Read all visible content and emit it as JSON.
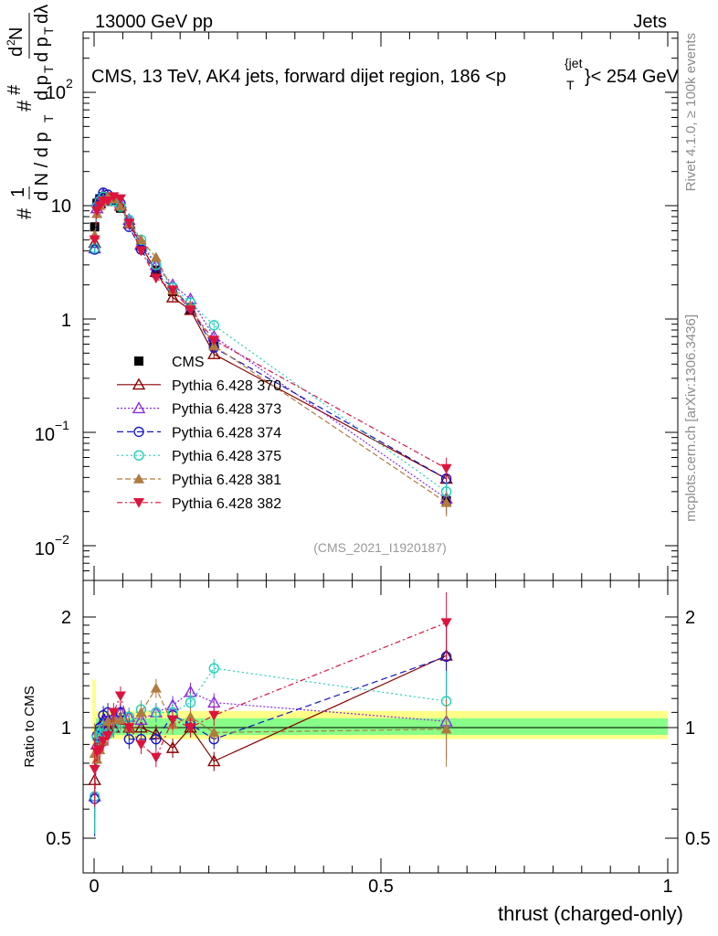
{
  "header": {
    "left": "13000 GeV pp",
    "right": "Jets"
  },
  "side_labels": {
    "rivet": "Rivet 4.1.0, ≥ 100k events",
    "mcplots": "mcplots.cern.ch [arXiv:1306.3436]"
  },
  "colors": {
    "cms": "#000000",
    "p370": "#8b0000",
    "p373": "#8a2be2",
    "p374": "#1515c8",
    "p375": "#20d0b8",
    "p381": "#b07a40",
    "p382": "#dc143c",
    "band_outer": "#ffff88",
    "band_inner": "#88ff88"
  },
  "chart_data": {
    "type": "line",
    "title": "CMS, 13 TeV, AK4 jets, forward dijet region, 186 <p_T^{jet}> < 254 GeV",
    "title_main": "CMS, 13 TeV, AK4 jets, forward dijet region, 186 <p",
    "title_tail": "}< 254 GeV",
    "title_sup": "{jet",
    "title_sub": "T",
    "analysis_id": "(CMS_2021_I1920187)",
    "xlabel": "thrust (charged-only)",
    "ylabel_top": "1/N dN/dp_T dN/dp_T d^2N/dp_T dlambda",
    "ylabel_ratio": "Ratio to CMS",
    "xlim": [
      -0.02,
      1.0
    ],
    "ylim_main": [
      0.005,
      300
    ],
    "ylim_ratio": [
      0.4,
      2.3
    ],
    "x_ticks": [
      "0",
      "0.5",
      "1"
    ],
    "y_ticks_main": [
      "10",
      "1"
    ],
    "y_ticks_main_pow": [
      {
        "base": "10",
        "exp": "2"
      },
      {
        "base": "10",
        "exp": "−1"
      },
      {
        "base": "10",
        "exp": "−2"
      }
    ],
    "y_ticks_ratio": [
      "2",
      "1",
      "0.5"
    ],
    "y_ticks_ratio_right": [
      "2",
      "1",
      "0.5"
    ],
    "x": [
      0.001,
      0.005,
      0.01,
      0.016,
      0.024,
      0.034,
      0.046,
      0.061,
      0.082,
      0.108,
      0.137,
      0.168,
      0.209,
      0.614
    ],
    "series": [
      {
        "name": "CMS",
        "key": "cms",
        "marker": "square",
        "dash": "none",
        "values": [
          6.5,
          10.5,
          11.5,
          12.0,
          11.5,
          11.0,
          9.5,
          7.0,
          4.5,
          2.7,
          1.75,
          1.2,
          0.6,
          0.025
        ],
        "ratio": [
          1,
          1,
          1,
          1,
          1,
          1,
          1,
          1,
          1,
          1,
          1,
          1,
          1,
          1
        ]
      },
      {
        "name": "Pythia 6.428 370",
        "key": "p370",
        "marker": "triangle-open",
        "dash": "none",
        "values": [
          4.7,
          9.5,
          10.5,
          12.5,
          11.5,
          11.0,
          10.0,
          7.0,
          4.5,
          2.6,
          1.55,
          1.2,
          0.49,
          0.039
        ],
        "ratio": [
          0.72,
          0.9,
          0.92,
          1.03,
          1.0,
          1.0,
          1.05,
          1.0,
          1.0,
          0.96,
          0.88,
          1.0,
          0.81,
          1.57
        ]
      },
      {
        "name": "Pythia 6.428 373",
        "key": "p373",
        "marker": "triangle-open",
        "dash": "2,2",
        "values": [
          4.2,
          9.5,
          11.0,
          12.5,
          12.0,
          11.5,
          10.5,
          7.5,
          4.6,
          3.0,
          2.0,
          1.5,
          0.7,
          0.026
        ],
        "ratio": [
          0.65,
          0.9,
          0.95,
          1.05,
          1.05,
          1.05,
          1.1,
          1.07,
          1.05,
          1.1,
          1.15,
          1.25,
          1.17,
          1.04
        ]
      },
      {
        "name": "Pythia 6.428 374",
        "key": "p374",
        "marker": "circle-open",
        "dash": "7,4",
        "values": [
          4.1,
          10.0,
          11.5,
          13.0,
          12.5,
          11.0,
          10.5,
          6.5,
          4.1,
          2.5,
          1.9,
          1.25,
          0.56,
          0.039
        ],
        "ratio": [
          0.64,
          0.95,
          1.0,
          1.08,
          1.1,
          1.0,
          1.1,
          0.93,
          0.93,
          0.93,
          1.08,
          1.02,
          0.93,
          1.56
        ]
      },
      {
        "name": "Pythia 6.428 375",
        "key": "p375",
        "marker": "circle-open",
        "dash": "2,3",
        "values": [
          4.2,
          9.8,
          11.0,
          12.0,
          11.0,
          11.0,
          9.8,
          7.5,
          5.0,
          3.0,
          1.9,
          1.4,
          0.88,
          0.03
        ],
        "ratio": [
          0.65,
          0.94,
          0.96,
          1.0,
          0.96,
          1.0,
          1.03,
          1.07,
          1.12,
          1.1,
          1.1,
          1.17,
          1.45,
          1.18
        ]
      },
      {
        "name": "Pythia 6.428 381",
        "key": "p381",
        "marker": "triangle-filled",
        "dash": "6,3",
        "values": [
          5.5,
          8.5,
          10.0,
          11.0,
          12.0,
          11.5,
          10.0,
          7.0,
          5.0,
          3.5,
          1.8,
          1.3,
          0.58,
          0.024
        ],
        "ratio": [
          0.85,
          0.82,
          0.87,
          0.92,
          1.04,
          1.05,
          1.05,
          1.0,
          1.1,
          1.28,
          1.02,
          1.07,
          0.97,
          0.99
        ]
      },
      {
        "name": "Pythia 6.428 382",
        "key": "p382",
        "marker": "triangle-down-filled",
        "dash": "6,3,2,3",
        "values": [
          5.0,
          9.0,
          10.0,
          11.0,
          11.0,
          12.0,
          11.5,
          7.0,
          4.0,
          2.3,
          1.8,
          1.2,
          0.65,
          0.048
        ],
        "ratio": [
          0.77,
          0.86,
          0.87,
          0.92,
          0.95,
          1.1,
          1.22,
          1.0,
          0.9,
          0.83,
          1.05,
          1.0,
          1.08,
          1.93
        ]
      }
    ]
  }
}
